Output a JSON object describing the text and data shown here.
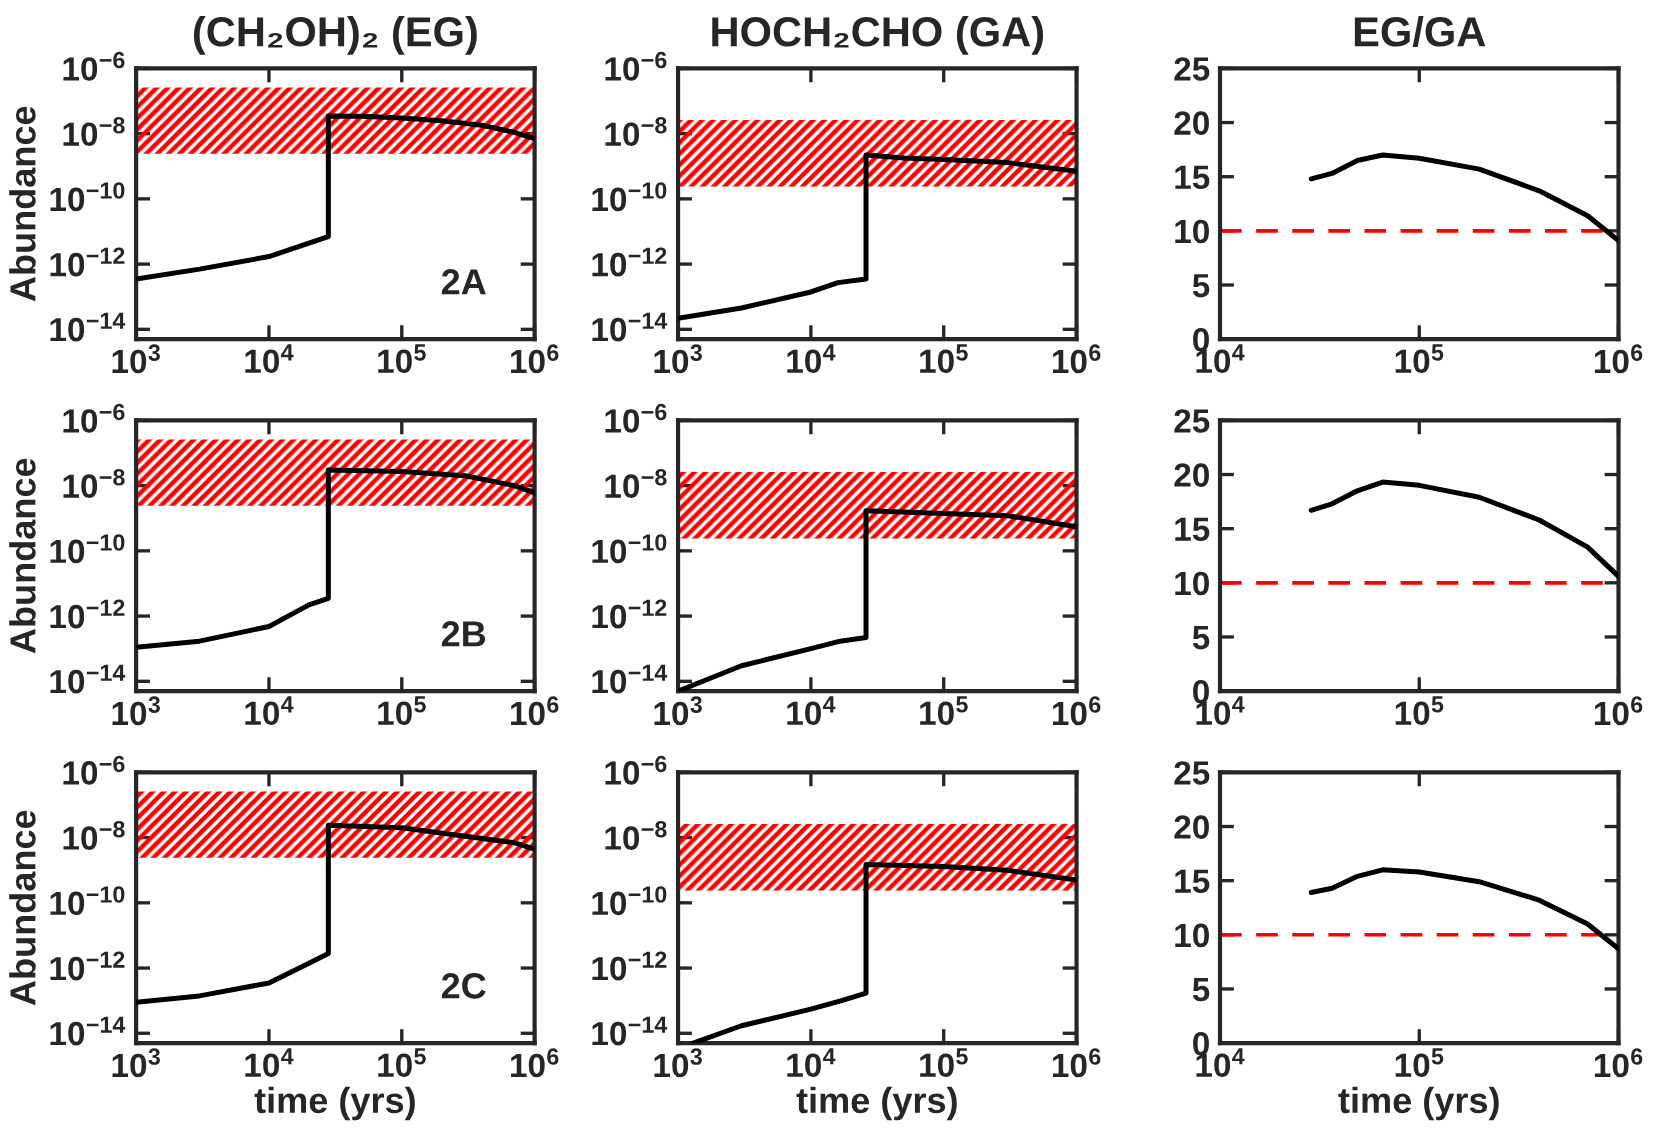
{
  "chart_data": [
    {
      "type": "line",
      "title": "(CH₂OH)₂ (EG)",
      "ylabel": "Abundance",
      "log": "xy",
      "xlim": [
        1000,
        1000000
      ],
      "ylim": [
        5e-15,
        1e-06
      ],
      "xticks": [
        {
          "value": 1000,
          "label": "10$^{3}$"
        },
        {
          "value": 10000,
          "label": "10$^{4}$"
        },
        {
          "value": 100000,
          "label": "10$^{5}$"
        },
        {
          "value": 1000000,
          "label": "10$^{6}$"
        }
      ],
      "yticks": [
        {
          "value": 1e-14,
          "label": "10$^{−14}$"
        },
        {
          "value": 1e-12,
          "label": "10$^{−12}$"
        },
        {
          "value": 1e-10,
          "label": "10$^{−10}$"
        },
        {
          "value": 1e-08,
          "label": "10$^{−8}$"
        },
        {
          "value": 1e-06,
          "label": "10$^{−6}$"
        }
      ],
      "bands": [
        {
          "axis": "y",
          "from": 2.4e-09,
          "to": 2.6e-07,
          "color": "#ff0000"
        }
      ],
      "annotations": [
        "2A"
      ],
      "series": [
        {
          "color": "#000000",
          "x": [
            1000,
            3000,
            10000,
            20000,
            28000,
            28000,
            50000,
            100000,
            200000,
            400000,
            700000,
            1000000
          ],
          "values": [
            3.5e-13,
            7e-13,
            1.7e-12,
            4.4e-12,
            7e-12,
            3.5e-08,
            3.4e-08,
            3e-08,
            2.5e-08,
            1.8e-08,
            1.1e-08,
            7e-09
          ]
        }
      ]
    },
    {
      "type": "line",
      "title": "HOCH₂CHO (GA)",
      "log": "xy",
      "xlim": [
        1000,
        1000000
      ],
      "ylim": [
        5e-15,
        1e-06
      ],
      "xticks": [
        {
          "value": 1000,
          "label": "10$^{3}$"
        },
        {
          "value": 10000,
          "label": "10$^{4}$"
        },
        {
          "value": 100000,
          "label": "10$^{5}$"
        },
        {
          "value": 1000000,
          "label": "10$^{6}$"
        }
      ],
      "yticks": [
        {
          "value": 1e-14,
          "label": "10$^{−14}$"
        },
        {
          "value": 1e-12,
          "label": "10$^{−12}$"
        },
        {
          "value": 1e-10,
          "label": "10$^{−10}$"
        },
        {
          "value": 1e-08,
          "label": "10$^{−8}$"
        },
        {
          "value": 1e-06,
          "label": "10$^{−6}$"
        }
      ],
      "bands": [
        {
          "axis": "y",
          "from": 2.4e-10,
          "to": 2.6e-08,
          "color": "#ff0000"
        }
      ],
      "series": [
        {
          "color": "#000000",
          "x": [
            1000,
            3000,
            10000,
            16000,
            26000,
            26000,
            50000,
            100000,
            300000,
            1000000
          ],
          "values": [
            2.2e-14,
            4.5e-14,
            1.4e-13,
            2.7e-13,
            3.5e-13,
            2.2e-09,
            1.8e-09,
            1.6e-09,
            1.3e-09,
            7e-10
          ]
        }
      ]
    },
    {
      "type": "line",
      "title": "EG/GA",
      "log": "x",
      "xlim": [
        10000,
        1000000
      ],
      "ylim": [
        0,
        25
      ],
      "xticks": [
        {
          "value": 10000,
          "label": "10$^{4}$"
        },
        {
          "value": 100000,
          "label": "10$^{5}$"
        },
        {
          "value": 1000000,
          "label": "10$^{6}$"
        }
      ],
      "yticks": [
        0,
        5,
        10,
        15,
        20,
        25
      ],
      "ref_lines": [
        {
          "axis": "y",
          "value": 10,
          "color": "#ff0000",
          "line_style": "dashed"
        }
      ],
      "series": [
        {
          "color": "#000000",
          "x": [
            28700,
            36500,
            48900,
            65500,
            100000,
            200000,
            400000,
            700000,
            1000000
          ],
          "values": [
            14.8,
            15.3,
            16.5,
            17.0,
            16.7,
            15.7,
            13.7,
            11.4,
            9.1
          ]
        }
      ]
    },
    {
      "type": "line",
      "ylabel": "Abundance",
      "log": "xy",
      "xlim": [
        1000,
        1000000
      ],
      "ylim": [
        5e-15,
        1e-06
      ],
      "xticks": [
        {
          "value": 1000,
          "label": "10$^{3}$"
        },
        {
          "value": 10000,
          "label": "10$^{4}$"
        },
        {
          "value": 100000,
          "label": "10$^{5}$"
        },
        {
          "value": 1000000,
          "label": "10$^{6}$"
        }
      ],
      "yticks": [
        {
          "value": 1e-14,
          "label": "10$^{−14}$"
        },
        {
          "value": 1e-12,
          "label": "10$^{−12}$"
        },
        {
          "value": 1e-10,
          "label": "10$^{−10}$"
        },
        {
          "value": 1e-08,
          "label": "10$^{−8}$"
        },
        {
          "value": 1e-06,
          "label": "10$^{−6}$"
        }
      ],
      "bands": [
        {
          "axis": "y",
          "from": 2.4e-09,
          "to": 2.6e-07,
          "color": "#ff0000"
        }
      ],
      "annotations": [
        "2B"
      ],
      "series": [
        {
          "color": "#000000",
          "x": [
            1000,
            3000,
            10000,
            20000,
            28000,
            28000,
            100000,
            300000,
            700000,
            1000000
          ],
          "values": [
            1.1e-13,
            1.7e-13,
            4.8e-13,
            2.2e-12,
            3.5e-12,
            3e-08,
            2.7e-08,
            2e-08,
            1e-08,
            6e-09
          ]
        }
      ]
    },
    {
      "type": "line",
      "log": "xy",
      "xlim": [
        1000,
        1000000
      ],
      "ylim": [
        5e-15,
        1e-06
      ],
      "xticks": [
        {
          "value": 1000,
          "label": "10$^{3}$"
        },
        {
          "value": 10000,
          "label": "10$^{4}$"
        },
        {
          "value": 100000,
          "label": "10$^{5}$"
        },
        {
          "value": 1000000,
          "label": "10$^{6}$"
        }
      ],
      "yticks": [
        {
          "value": 1e-14,
          "label": "10$^{−14}$"
        },
        {
          "value": 1e-12,
          "label": "10$^{−12}$"
        },
        {
          "value": 1e-10,
          "label": "10$^{−10}$"
        },
        {
          "value": 1e-08,
          "label": "10$^{−8}$"
        },
        {
          "value": 1e-06,
          "label": "10$^{−6}$"
        }
      ],
      "bands": [
        {
          "axis": "y",
          "from": 2.4e-10,
          "to": 2.6e-08,
          "color": "#ff0000"
        }
      ],
      "series": [
        {
          "color": "#000000",
          "x": [
            1000,
            3000,
            10000,
            16600,
            26000,
            26000,
            100000,
            300000,
            1000000
          ],
          "values": [
            5e-15,
            3e-14,
            1e-13,
            1.7e-13,
            2.2e-13,
            1.7e-09,
            1.4e-09,
            1.2e-09,
            5.5e-10
          ]
        }
      ]
    },
    {
      "type": "line",
      "log": "x",
      "xlim": [
        10000,
        1000000
      ],
      "ylim": [
        0,
        25
      ],
      "xticks": [
        {
          "value": 10000,
          "label": "10$^{4}$"
        },
        {
          "value": 100000,
          "label": "10$^{5}$"
        },
        {
          "value": 1000000,
          "label": "10$^{6}$"
        }
      ],
      "yticks": [
        0,
        5,
        10,
        15,
        20,
        25
      ],
      "ref_lines": [
        {
          "axis": "y",
          "value": 10,
          "color": "#ff0000",
          "line_style": "dashed"
        }
      ],
      "series": [
        {
          "color": "#000000",
          "x": [
            28700,
            36500,
            48900,
            65500,
            100000,
            200000,
            400000,
            700000,
            1000000
          ],
          "values": [
            16.7,
            17.3,
            18.5,
            19.3,
            19.0,
            17.9,
            15.8,
            13.3,
            10.6
          ]
        }
      ]
    },
    {
      "type": "line",
      "ylabel": "Abundance",
      "xlabel": "time (yrs)",
      "log": "xy",
      "xlim": [
        1000,
        1000000
      ],
      "ylim": [
        5e-15,
        1e-06
      ],
      "xticks": [
        {
          "value": 1000,
          "label": "10$^{3}$"
        },
        {
          "value": 10000,
          "label": "10$^{4}$"
        },
        {
          "value": 100000,
          "label": "10$^{5}$"
        },
        {
          "value": 1000000,
          "label": "10$^{6}$"
        }
      ],
      "yticks": [
        {
          "value": 1e-14,
          "label": "10$^{−14}$"
        },
        {
          "value": 1e-12,
          "label": "10$^{−12}$"
        },
        {
          "value": 1e-10,
          "label": "10$^{−10}$"
        },
        {
          "value": 1e-08,
          "label": "10$^{−8}$"
        },
        {
          "value": 1e-06,
          "label": "10$^{−6}$"
        }
      ],
      "bands": [
        {
          "axis": "y",
          "from": 2.4e-09,
          "to": 2.6e-07,
          "color": "#ff0000"
        }
      ],
      "annotations": [
        "2C"
      ],
      "series": [
        {
          "color": "#000000",
          "x": [
            1000,
            3000,
            10000,
            20000,
            28000,
            28000,
            100000,
            300000,
            700000,
            1000000
          ],
          "values": [
            9e-14,
            1.4e-13,
            3.5e-13,
            1.4e-12,
            2.8e-12,
            2.4e-08,
            2e-08,
            1.1e-08,
            7e-09,
            4.4e-09
          ]
        }
      ]
    },
    {
      "type": "line",
      "xlabel": "time (yrs)",
      "log": "xy",
      "xlim": [
        1000,
        1000000
      ],
      "ylim": [
        5e-15,
        1e-06
      ],
      "xticks": [
        {
          "value": 1000,
          "label": "10$^{3}$"
        },
        {
          "value": 10000,
          "label": "10$^{4}$"
        },
        {
          "value": 100000,
          "label": "10$^{5}$"
        },
        {
          "value": 1000000,
          "label": "10$^{6}$"
        }
      ],
      "yticks": [
        {
          "value": 1e-14,
          "label": "10$^{−14}$"
        },
        {
          "value": 1e-12,
          "label": "10$^{−12}$"
        },
        {
          "value": 1e-10,
          "label": "10$^{−10}$"
        },
        {
          "value": 1e-08,
          "label": "10$^{−8}$"
        },
        {
          "value": 1e-06,
          "label": "10$^{−6}$"
        }
      ],
      "bands": [
        {
          "axis": "y",
          "from": 2.4e-10,
          "to": 2.6e-08,
          "color": "#ff0000"
        }
      ],
      "series": [
        {
          "color": "#000000",
          "x": [
            1300,
            3000,
            10000,
            17000,
            26000,
            26000,
            100000,
            300000,
            1000000
          ],
          "values": [
            5e-15,
            1.7e-14,
            5.5e-14,
            1e-13,
            1.7e-13,
            1.5e-09,
            1.3e-09,
            1e-09,
            5e-10
          ]
        }
      ]
    },
    {
      "type": "line",
      "xlabel": "time (yrs)",
      "log": "x",
      "xlim": [
        10000,
        1000000
      ],
      "ylim": [
        0,
        25
      ],
      "xticks": [
        {
          "value": 10000,
          "label": "10$^{4}$"
        },
        {
          "value": 100000,
          "label": "10$^{5}$"
        },
        {
          "value": 1000000,
          "label": "10$^{6}$"
        }
      ],
      "yticks": [
        0,
        5,
        10,
        15,
        20,
        25
      ],
      "ref_lines": [
        {
          "axis": "y",
          "value": 10,
          "color": "#ff0000",
          "line_style": "dashed"
        }
      ],
      "series": [
        {
          "color": "#000000",
          "x": [
            28700,
            36500,
            48900,
            65500,
            100000,
            200000,
            400000,
            700000,
            1000000
          ],
          "values": [
            13.9,
            14.3,
            15.4,
            16.0,
            15.8,
            14.9,
            13.2,
            11.0,
            8.7
          ]
        }
      ]
    }
  ]
}
